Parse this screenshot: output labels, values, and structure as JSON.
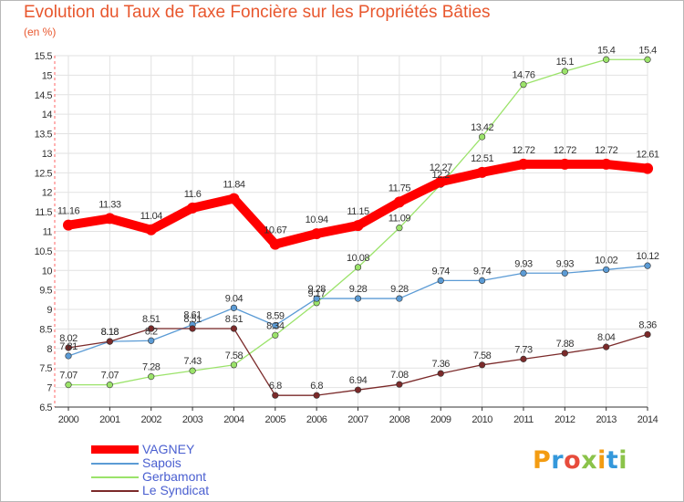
{
  "title": "Evolution du Taux de Taxe Foncière sur les Propriétés Bâties",
  "unit": "(en %)",
  "logo": "Proxiti",
  "chart_data": {
    "type": "line",
    "x": [
      "2000",
      "2001",
      "2002",
      "2003",
      "2004",
      "2005",
      "2006",
      "2007",
      "2008",
      "2009",
      "2010",
      "2011",
      "2012",
      "2013",
      "2014"
    ],
    "ylim": [
      6.5,
      15.5
    ],
    "yticks": [
      "6.5",
      "7",
      "7.5",
      "8",
      "8.5",
      "9",
      "9.5",
      "10",
      "10.5",
      "11",
      "11.5",
      "12",
      "12.5",
      "13",
      "13.5",
      "14",
      "14.5",
      "15",
      "15.5"
    ],
    "grid": true,
    "legend_position": "bottom-left",
    "series": [
      {
        "name": "VAGNEY",
        "color": "#ff0000",
        "values": [
          11.16,
          11.33,
          11.04,
          11.6,
          11.84,
          10.67,
          10.94,
          11.15,
          11.75,
          12.27,
          12.51,
          12.72,
          12.72,
          12.72,
          12.61
        ],
        "labels": [
          "11.16",
          "11.33",
          "11.04",
          "11.6",
          "11.84",
          "10.67",
          "10.94",
          "11.15",
          "11.75",
          "12.27",
          "12.51",
          "12.72",
          "12.72",
          "12.72",
          "12.61"
        ]
      },
      {
        "name": "Sapois",
        "color": "#5b9bd5",
        "values": [
          7.81,
          8.18,
          8.2,
          8.61,
          9.04,
          8.59,
          9.28,
          9.28,
          9.28,
          9.74,
          9.74,
          9.93,
          9.93,
          10.02,
          10.12
        ],
        "labels": [
          "7.81",
          "8.18",
          "8.2",
          "8.61",
          "9.04",
          "8.59",
          "9.28",
          "9.28",
          "9.28",
          "9.74",
          "9.74",
          "9.93",
          "9.93",
          "10.02",
          "10.12"
        ]
      },
      {
        "name": "Gerbamont",
        "color": "#9be36a",
        "values": [
          7.07,
          7.07,
          7.28,
          7.43,
          7.58,
          8.34,
          9.17,
          10.08,
          11.09,
          12.2,
          13.42,
          14.76,
          15.1,
          15.4,
          15.4
        ],
        "labels": [
          "7.07",
          "7.07",
          "7.28",
          "7.43",
          "7.58",
          "8.34",
          "9.17",
          "10.08",
          "11.09",
          "12.2",
          "13.42",
          "14.76",
          "15.1",
          "15.4",
          "15.4"
        ]
      },
      {
        "name": "Le Syndicat",
        "color": "#7b2a2a",
        "values": [
          8.02,
          8.18,
          8.51,
          8.51,
          8.51,
          6.8,
          6.8,
          6.94,
          7.08,
          7.36,
          7.58,
          7.73,
          7.88,
          8.04,
          8.36
        ],
        "labels": [
          "8.02",
          "8.18",
          "8.51",
          "8.51",
          "8.51",
          "6.8",
          "6.8",
          "6.94",
          "7.08",
          "7.36",
          "7.58",
          "7.73",
          "7.88",
          "8.04",
          "8.36"
        ]
      }
    ]
  }
}
